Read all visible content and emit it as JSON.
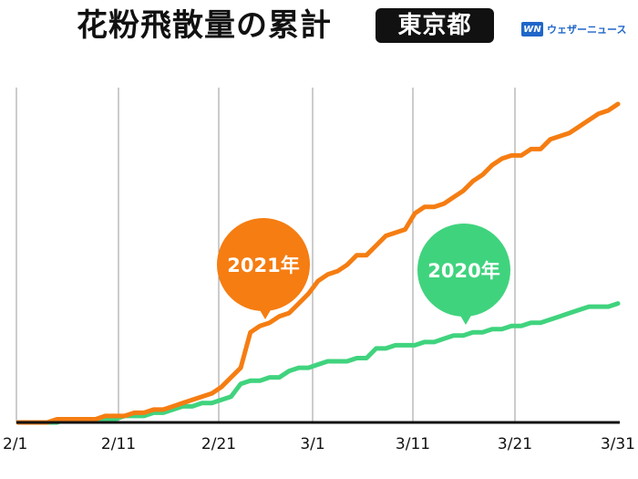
{
  "header": {
    "title": "花粉飛散量の累計",
    "region": "東京都",
    "brand_logo": "WN",
    "brand_name": "ウェザーニュース"
  },
  "chart_data": {
    "type": "line",
    "title": "花粉飛散量の累計",
    "xlabel": "",
    "ylabel": "",
    "grid": "vertical",
    "x_ticks": [
      "2/1",
      "2/11",
      "2/21",
      "3/1",
      "3/11",
      "3/21",
      "3/31"
    ],
    "series": [
      {
        "name": "2021年",
        "color": "#f57d12",
        "values": [
          0,
          0,
          0,
          0,
          1,
          1,
          1,
          1,
          1,
          2,
          2,
          2,
          3,
          3,
          4,
          4,
          5,
          6,
          7,
          8,
          9,
          11,
          14,
          17,
          28,
          30,
          31,
          33,
          34,
          37,
          40,
          44,
          46,
          47,
          49,
          52,
          52,
          55,
          58,
          59,
          60,
          65,
          67,
          67,
          68,
          70,
          72,
          75,
          77,
          80,
          82,
          83,
          83,
          85,
          85,
          88,
          89,
          90,
          92,
          94,
          96,
          97,
          99
        ]
      },
      {
        "name": "2020年",
        "color": "#40d37e",
        "values": [
          0,
          0,
          0,
          0,
          0,
          1,
          1,
          1,
          1,
          1,
          1,
          2,
          2,
          2,
          3,
          3,
          4,
          5,
          5,
          6,
          6,
          7,
          8,
          12,
          13,
          13,
          14,
          14,
          16,
          17,
          17,
          18,
          19,
          19,
          19,
          20,
          20,
          23,
          23,
          24,
          24,
          24,
          25,
          25,
          26,
          27,
          27,
          28,
          28,
          29,
          29,
          30,
          30,
          31,
          31,
          32,
          33,
          34,
          35,
          36,
          36,
          36,
          37
        ]
      }
    ]
  }
}
